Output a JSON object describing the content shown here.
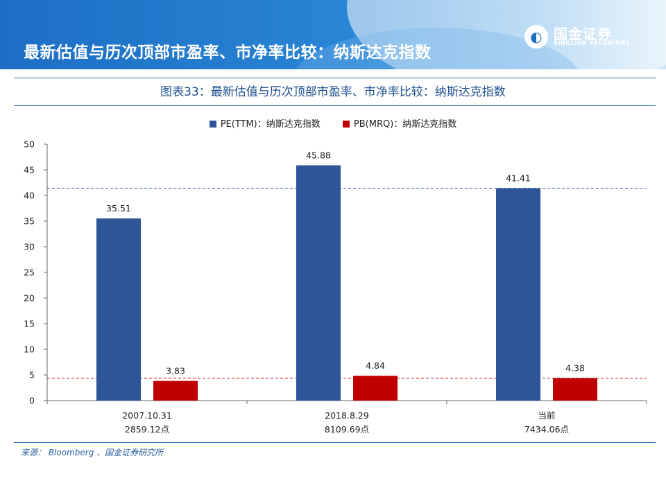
{
  "header": {
    "title": "最新估值与历次顶部市盈率、市净率比较：纳斯达克指数",
    "logo_cn": "国金证券",
    "logo_en": "SINOLINK SECURITIES"
  },
  "chart_data": {
    "type": "bar",
    "title": "图表33：最新估值与历次顶部市盈率、市净率比较：纳斯达克指数",
    "categories": [
      [
        "2007.10.31",
        "2859.12点"
      ],
      [
        "2018.8.29",
        "8109.69点"
      ],
      [
        "当前",
        "7434.06点"
      ]
    ],
    "series": [
      {
        "name": "PE(TTM)：纳斯达克指数",
        "values": [
          35.51,
          45.88,
          41.41
        ],
        "color": "#2e5597"
      },
      {
        "name": "PB(MRQ)：纳斯达克指数",
        "values": [
          3.83,
          4.84,
          4.38
        ],
        "color": "#c00000"
      }
    ],
    "data_labels": [
      [
        "35.51",
        "45.88",
        "41.41"
      ],
      [
        "3.83",
        "4.84",
        "4.38"
      ]
    ],
    "reference_lines": [
      {
        "value": 41.41,
        "color": "#2e5597",
        "style": "dashed"
      },
      {
        "value": 4.38,
        "color": "#c00000",
        "style": "dashed"
      }
    ],
    "ylim": [
      0,
      50
    ],
    "yticks": [
      0,
      5,
      10,
      15,
      20,
      25,
      30,
      35,
      40,
      45,
      50
    ],
    "xlabel": "",
    "ylabel": "",
    "legend": "top-center",
    "grid": false
  },
  "source": "来源： Bloomberg 、国金证券研究所"
}
